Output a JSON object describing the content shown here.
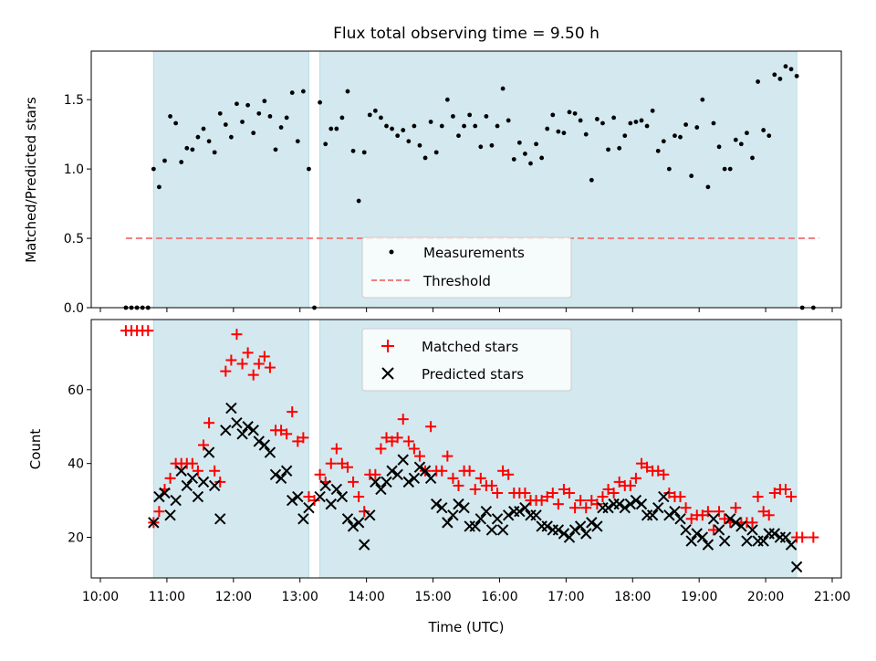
{
  "chart_data": [
    {
      "type": "scatter",
      "title": "Flux total observing time = 9.50 h",
      "ylabel": "Matched/Predicted stars",
      "xlim": [
        "10:00",
        "21:00"
      ],
      "ylim": [
        0,
        1.85
      ],
      "yticks": [
        "0.0",
        "0.5",
        "1.0",
        "1.5"
      ],
      "ytick_values": [
        0,
        0.5,
        1.0,
        1.5
      ],
      "shaded_intervals": [
        [
          "10:48",
          "13:08"
        ],
        [
          "13:18",
          "20:28"
        ]
      ],
      "shade_color": "#d3e9ef",
      "legend": {
        "position": "lower center",
        "entries": [
          "Measurements",
          "Threshold"
        ]
      },
      "threshold": {
        "name": "Threshold",
        "value": 0.5,
        "x_range": [
          "10:23",
          "20:48"
        ],
        "color": "#f08080"
      },
      "series": [
        {
          "name": "Measurements",
          "color": "#000000",
          "points": [
            [
              "10:23",
              0
            ],
            [
              "10:28",
              0
            ],
            [
              "10:33",
              0
            ],
            [
              "10:38",
              0
            ],
            [
              "10:43",
              0
            ],
            [
              "10:48",
              1.0
            ],
            [
              "10:53",
              0.87
            ],
            [
              "10:58",
              1.06
            ],
            [
              "11:03",
              1.38
            ],
            [
              "11:08",
              1.33
            ],
            [
              "11:13",
              1.05
            ],
            [
              "11:18",
              1.15
            ],
            [
              "11:23",
              1.14
            ],
            [
              "11:28",
              1.23
            ],
            [
              "11:33",
              1.29
            ],
            [
              "11:38",
              1.2
            ],
            [
              "11:43",
              1.12
            ],
            [
              "11:48",
              1.4
            ],
            [
              "11:53",
              1.32
            ],
            [
              "11:58",
              1.23
            ],
            [
              "12:03",
              1.47
            ],
            [
              "12:08",
              1.34
            ],
            [
              "12:13",
              1.46
            ],
            [
              "12:18",
              1.26
            ],
            [
              "12:23",
              1.4
            ],
            [
              "12:28",
              1.49
            ],
            [
              "12:33",
              1.38
            ],
            [
              "12:38",
              1.14
            ],
            [
              "12:43",
              1.3
            ],
            [
              "12:48",
              1.37
            ],
            [
              "12:53",
              1.55
            ],
            [
              "12:58",
              1.2
            ],
            [
              "13:03",
              1.56
            ],
            [
              "13:08",
              1.0
            ],
            [
              "13:13",
              0
            ],
            [
              "13:18",
              1.48
            ],
            [
              "13:23",
              1.18
            ],
            [
              "13:28",
              1.29
            ],
            [
              "13:33",
              1.29
            ],
            [
              "13:38",
              1.37
            ],
            [
              "13:43",
              1.56
            ],
            [
              "13:48",
              1.13
            ],
            [
              "13:53",
              0.77
            ],
            [
              "13:58",
              1.12
            ],
            [
              "14:03",
              1.39
            ],
            [
              "14:08",
              1.42
            ],
            [
              "14:13",
              1.37
            ],
            [
              "14:18",
              1.31
            ],
            [
              "14:23",
              1.29
            ],
            [
              "14:28",
              1.24
            ],
            [
              "14:33",
              1.28
            ],
            [
              "14:38",
              1.2
            ],
            [
              "14:43",
              1.31
            ],
            [
              "14:48",
              1.17
            ],
            [
              "14:53",
              1.08
            ],
            [
              "14:58",
              1.34
            ],
            [
              "15:03",
              1.12
            ],
            [
              "15:08",
              1.31
            ],
            [
              "15:13",
              1.5
            ],
            [
              "15:18",
              1.38
            ],
            [
              "15:23",
              1.24
            ],
            [
              "15:28",
              1.31
            ],
            [
              "15:33",
              1.39
            ],
            [
              "15:38",
              1.31
            ],
            [
              "15:43",
              1.16
            ],
            [
              "15:48",
              1.38
            ],
            [
              "15:53",
              1.17
            ],
            [
              "15:58",
              1.31
            ],
            [
              "16:03",
              1.58
            ],
            [
              "16:08",
              1.35
            ],
            [
              "16:13",
              1.07
            ],
            [
              "16:18",
              1.19
            ],
            [
              "16:23",
              1.11
            ],
            [
              "16:28",
              1.04
            ],
            [
              "16:33",
              1.18
            ],
            [
              "16:38",
              1.08
            ],
            [
              "16:43",
              1.29
            ],
            [
              "16:48",
              1.39
            ],
            [
              "16:53",
              1.27
            ],
            [
              "16:58",
              1.26
            ],
            [
              "17:03",
              1.41
            ],
            [
              "17:08",
              1.4
            ],
            [
              "17:13",
              1.35
            ],
            [
              "17:18",
              1.25
            ],
            [
              "17:23",
              0.92
            ],
            [
              "17:28",
              1.36
            ],
            [
              "17:33",
              1.33
            ],
            [
              "17:38",
              1.14
            ],
            [
              "17:43",
              1.37
            ],
            [
              "17:48",
              1.15
            ],
            [
              "17:53",
              1.24
            ],
            [
              "17:58",
              1.33
            ],
            [
              "18:03",
              1.34
            ],
            [
              "18:08",
              1.35
            ],
            [
              "18:13",
              1.31
            ],
            [
              "18:18",
              1.42
            ],
            [
              "18:23",
              1.13
            ],
            [
              "18:28",
              1.2
            ],
            [
              "18:33",
              1.0
            ],
            [
              "18:38",
              1.24
            ],
            [
              "18:43",
              1.23
            ],
            [
              "18:48",
              1.32
            ],
            [
              "18:53",
              0.95
            ],
            [
              "18:58",
              1.3
            ],
            [
              "19:03",
              1.5
            ],
            [
              "19:08",
              0.87
            ],
            [
              "19:13",
              1.33
            ],
            [
              "19:18",
              1.16
            ],
            [
              "19:23",
              1.0
            ],
            [
              "19:28",
              1.0
            ],
            [
              "19:33",
              1.21
            ],
            [
              "19:38",
              1.18
            ],
            [
              "19:43",
              1.26
            ],
            [
              "19:48",
              1.08
            ],
            [
              "19:53",
              1.63
            ],
            [
              "19:58",
              1.28
            ],
            [
              "20:03",
              1.24
            ],
            [
              "20:08",
              1.68
            ],
            [
              "20:13",
              1.65
            ],
            [
              "20:18",
              1.74
            ],
            [
              "20:23",
              1.72
            ],
            [
              "20:28",
              1.67
            ],
            [
              "20:33",
              0
            ],
            [
              "20:43",
              0
            ]
          ]
        }
      ]
    },
    {
      "type": "scatter",
      "xlabel": "Time (UTC)",
      "ylabel": "Count",
      "xlim": [
        "10:00",
        "21:00"
      ],
      "ylim": [
        9,
        79
      ],
      "xticks": [
        "10:00",
        "11:00",
        "12:00",
        "13:00",
        "14:00",
        "15:00",
        "16:00",
        "17:00",
        "18:00",
        "19:00",
        "20:00",
        "21:00"
      ],
      "yticks": [
        "20",
        "40",
        "60"
      ],
      "ytick_values": [
        20,
        40,
        60
      ],
      "shaded_intervals": [
        [
          "10:48",
          "13:08"
        ],
        [
          "13:18",
          "20:28"
        ]
      ],
      "shade_color": "#d3e9ef",
      "legend": {
        "position": "upper center",
        "entries": [
          "Matched stars",
          "Predicted stars"
        ]
      },
      "series": [
        {
          "name": "Matched stars",
          "color": "#ff0000",
          "marker": "+",
          "x": [
            "10:23",
            "10:28",
            "10:33",
            "10:38",
            "10:43",
            "10:48",
            "10:53",
            "10:58",
            "11:03",
            "11:08",
            "11:13",
            "11:18",
            "11:23",
            "11:28",
            "11:33",
            "11:38",
            "11:43",
            "11:48",
            "11:53",
            "11:58",
            "12:03",
            "12:08",
            "12:13",
            "12:18",
            "12:23",
            "12:28",
            "12:33",
            "12:38",
            "12:43",
            "12:48",
            "12:53",
            "12:58",
            "13:03",
            "13:08",
            "13:13",
            "13:18",
            "13:23",
            "13:28",
            "13:33",
            "13:38",
            "13:43",
            "13:48",
            "13:53",
            "13:58",
            "14:03",
            "14:08",
            "14:13",
            "14:18",
            "14:23",
            "14:28",
            "14:33",
            "14:38",
            "14:43",
            "14:48",
            "14:53",
            "14:58",
            "15:03",
            "15:08",
            "15:13",
            "15:18",
            "15:23",
            "15:28",
            "15:33",
            "15:38",
            "15:43",
            "15:48",
            "15:53",
            "15:58",
            "16:03",
            "16:08",
            "16:13",
            "16:18",
            "16:23",
            "16:28",
            "16:33",
            "16:38",
            "16:43",
            "16:48",
            "16:53",
            "16:58",
            "17:03",
            "17:08",
            "17:13",
            "17:18",
            "17:23",
            "17:28",
            "17:33",
            "17:38",
            "17:43",
            "17:48",
            "17:53",
            "17:58",
            "18:03",
            "18:08",
            "18:13",
            "18:18",
            "18:23",
            "18:28",
            "18:33",
            "18:38",
            "18:43",
            "18:48",
            "18:53",
            "18:58",
            "19:03",
            "19:08",
            "19:13",
            "19:18",
            "19:23",
            "19:28",
            "19:33",
            "19:38",
            "19:43",
            "19:48",
            "19:53",
            "19:58",
            "20:03",
            "20:08",
            "20:13",
            "20:18",
            "20:23",
            "20:28",
            "20:33",
            "20:43"
          ],
          "values": [
            76,
            76,
            76,
            76,
            76,
            24,
            27,
            33,
            36,
            40,
            40,
            40,
            40,
            38,
            45,
            51,
            38,
            35,
            65,
            68,
            75,
            67,
            70,
            64,
            67,
            69,
            66,
            49,
            49,
            48,
            54,
            46,
            47,
            31,
            30,
            37,
            35,
            40,
            44,
            40,
            39,
            35,
            31,
            27,
            37,
            37,
            44,
            47,
            46,
            47,
            52,
            46,
            44,
            42,
            38,
            50,
            38,
            38,
            42,
            36,
            34,
            38,
            38,
            33,
            36,
            34,
            34,
            32,
            38,
            37,
            32,
            32,
            32,
            30,
            30,
            30,
            31,
            32,
            29,
            33,
            32,
            28,
            30,
            28,
            30,
            29,
            31,
            33,
            32,
            35,
            34,
            34,
            36,
            40,
            39,
            38,
            38,
            37,
            32,
            31,
            31,
            28,
            25,
            26,
            26,
            27,
            22,
            27,
            25,
            24,
            28,
            24,
            24,
            24,
            31,
            27,
            26,
            32,
            33,
            33,
            31,
            20,
            20,
            20
          ]
        },
        {
          "name": "Predicted stars",
          "color": "#000000",
          "marker": "x",
          "x": [
            "10:48",
            "10:53",
            "10:58",
            "11:03",
            "11:08",
            "11:13",
            "11:18",
            "11:23",
            "11:28",
            "11:33",
            "11:38",
            "11:43",
            "11:48",
            "11:53",
            "11:58",
            "12:03",
            "12:08",
            "12:13",
            "12:18",
            "12:23",
            "12:28",
            "12:33",
            "12:38",
            "12:43",
            "12:48",
            "12:53",
            "12:58",
            "13:03",
            "13:08",
            "13:18",
            "13:23",
            "13:28",
            "13:33",
            "13:38",
            "13:43",
            "13:48",
            "13:53",
            "13:58",
            "14:03",
            "14:08",
            "14:13",
            "14:18",
            "14:23",
            "14:28",
            "14:33",
            "14:38",
            "14:43",
            "14:48",
            "14:53",
            "14:58",
            "15:03",
            "15:08",
            "15:13",
            "15:18",
            "15:23",
            "15:28",
            "15:33",
            "15:38",
            "15:43",
            "15:48",
            "15:53",
            "15:58",
            "16:03",
            "16:08",
            "16:13",
            "16:18",
            "16:23",
            "16:28",
            "16:33",
            "16:38",
            "16:43",
            "16:48",
            "16:53",
            "16:58",
            "17:03",
            "17:08",
            "17:13",
            "17:18",
            "17:23",
            "17:28",
            "17:33",
            "17:38",
            "17:43",
            "17:48",
            "17:53",
            "17:58",
            "18:03",
            "18:08",
            "18:13",
            "18:18",
            "18:23",
            "18:28",
            "18:33",
            "18:38",
            "18:43",
            "18:48",
            "18:53",
            "18:58",
            "19:03",
            "19:08",
            "19:13",
            "19:18",
            "19:23",
            "19:28",
            "19:33",
            "19:38",
            "19:43",
            "19:48",
            "19:53",
            "19:58",
            "20:03",
            "20:08",
            "20:13",
            "20:18",
            "20:23",
            "20:28"
          ],
          "values": [
            24,
            31,
            32,
            26,
            30,
            38,
            34,
            36,
            31,
            35,
            43,
            34,
            25,
            49,
            55,
            51,
            48,
            50,
            49,
            46,
            45,
            43,
            37,
            36,
            38,
            30,
            31,
            25,
            28,
            31,
            34,
            29,
            33,
            31,
            25,
            23,
            24,
            18,
            26,
            35,
            33,
            35,
            38,
            37,
            41,
            35,
            36,
            39,
            38,
            36,
            29,
            28,
            24,
            26,
            29,
            28,
            23,
            23,
            25,
            27,
            22,
            25,
            22,
            26,
            27,
            27,
            28,
            26,
            26,
            23,
            23,
            22,
            22,
            21,
            20,
            22,
            23,
            21,
            24,
            23,
            28,
            28,
            29,
            29,
            28,
            29,
            30,
            29,
            26,
            26,
            28,
            31,
            26,
            27,
            25,
            22,
            19,
            21,
            20,
            18,
            25,
            22,
            19,
            25,
            24,
            23,
            19,
            22,
            19,
            19,
            21,
            21,
            20,
            20,
            18,
            12
          ]
        }
      ]
    }
  ]
}
